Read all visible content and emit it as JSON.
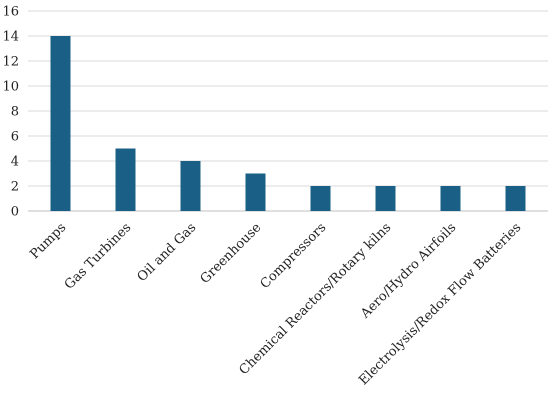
{
  "chart_data": {
    "type": "bar",
    "title": "",
    "xlabel": "",
    "ylabel": "",
    "ylim": [
      0,
      16
    ],
    "yticks": [
      0,
      2,
      4,
      6,
      8,
      10,
      12,
      14,
      16
    ],
    "grid": true,
    "legend": "none",
    "bar_color": "#1a5f85",
    "grid_color": "#d9d9d9",
    "axis_color": "#bfbfbf",
    "categories": [
      "Pumps",
      "Gas Turbines",
      "Oil and Gas",
      "Greenhouse",
      "Compressors",
      "Chemical Reactors/Rotary kilns",
      "Aero/Hydro Airfoils",
      "Electrolysis/Redox Flow Batteries"
    ],
    "values": [
      14,
      5,
      4,
      3,
      2,
      2,
      2,
      2
    ]
  }
}
